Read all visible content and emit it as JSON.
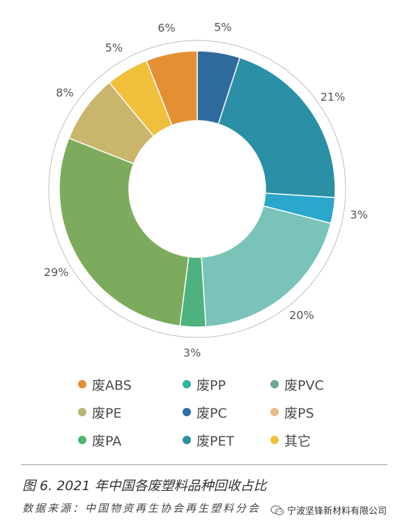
{
  "chart_data": {
    "type": "pie",
    "donut": true,
    "slices": [
      {
        "label": "废PVC",
        "value": 5,
        "value_label": "5%",
        "color": "#2e6a9b"
      },
      {
        "label": "废PET",
        "value": 21,
        "value_label": "21%",
        "color": "#2b8fa5"
      },
      {
        "label": "废PC",
        "value": 3,
        "value_label": "3%",
        "color": "#2aa7cb"
      },
      {
        "label": "废PP",
        "value": 20,
        "value_label": "20%",
        "color": "#79c3b9"
      },
      {
        "label": "废PA",
        "value": 3,
        "value_label": "3%",
        "color": "#4db27e"
      },
      {
        "label": "废PE",
        "value": 29,
        "value_label": "29%",
        "color": "#7dab5d"
      },
      {
        "label": "废PS",
        "value": 8,
        "value_label": "8%",
        "color": "#c9b66c"
      },
      {
        "label": "其它",
        "value": 5,
        "value_label": "5%",
        "color": "#f0bf3c"
      },
      {
        "label": "废ABS",
        "value": 6,
        "value_label": "6%",
        "color": "#e58f35"
      }
    ],
    "legend_placement": "bottom",
    "legend": [
      {
        "label": "废ABS",
        "color": "#e58f35"
      },
      {
        "label": "废PP",
        "color": "#2fb3a3"
      },
      {
        "label": "废PVC",
        "color": "#6aa992"
      },
      {
        "label": "废PE",
        "color": "#b9b46c"
      },
      {
        "label": "废PC",
        "color": "#2d6ea5"
      },
      {
        "label": "废PS",
        "color": "#e9b88a"
      },
      {
        "label": "废PA",
        "color": "#4db869"
      },
      {
        "label": "废PET",
        "color": "#2b8fa5"
      },
      {
        "label": "其它",
        "color": "#f0c433"
      }
    ]
  },
  "caption": "图 6. 2021 年中国各废塑料品种回收占比",
  "source": "数据来源：中国物资再生协会再生塑料分会",
  "watermark": {
    "icon": "wechat-icon",
    "text": "宁波坚锋新材料有限公司"
  }
}
